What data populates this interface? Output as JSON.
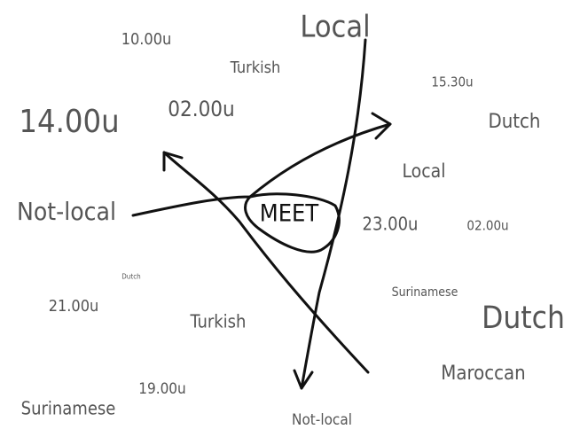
{
  "center_label": "MEET",
  "words": [
    "Local",
    "10.00u",
    "Turkish",
    "15.30u",
    "02.00u",
    "14.00u",
    "Dutch",
    "Local",
    "Not-local",
    "23.00u",
    "02.00u",
    "Dutch",
    "Surinamese",
    "21.00u",
    "Dutch",
    "Turkish",
    "Maroccan",
    "19.00u",
    "Surinamese",
    "Not-local"
  ]
}
